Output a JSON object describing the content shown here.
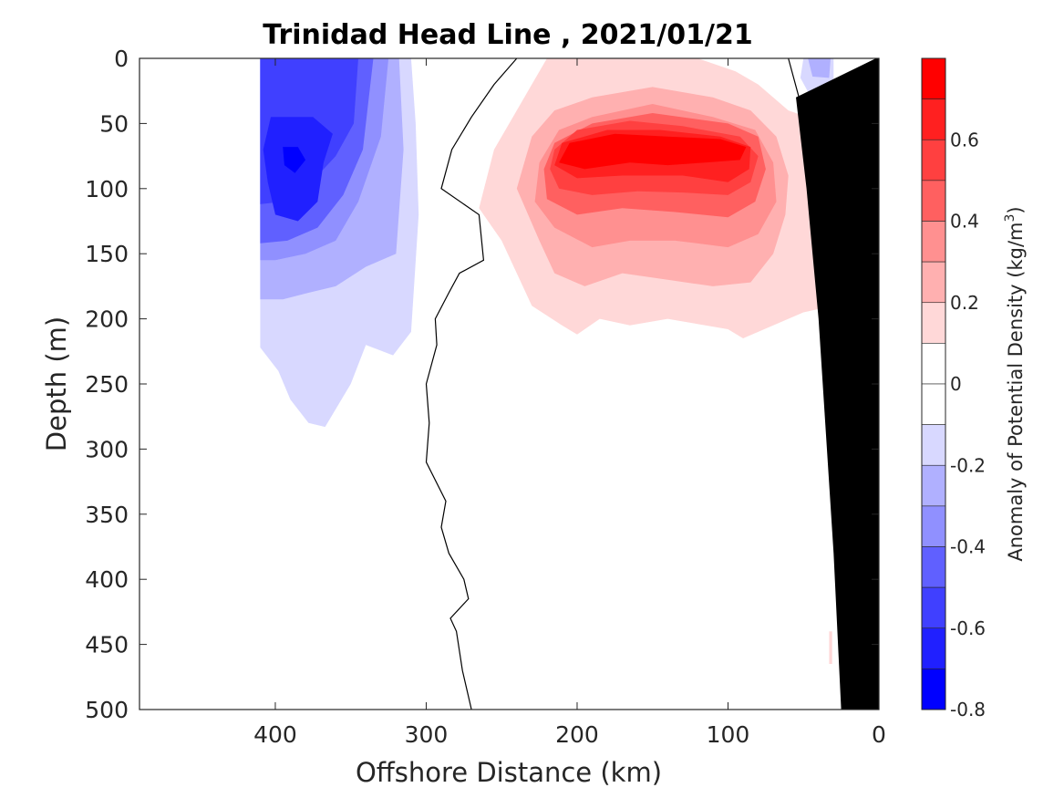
{
  "chart_data": {
    "type": "contour",
    "title": "Trinidad Head Line , 2021/01/21",
    "xlabel": "Offshore Distance (km)",
    "ylabel": "Depth (m)",
    "xlim": [
      490,
      0
    ],
    "ylim": [
      0,
      500
    ],
    "x_reversed": true,
    "y_reversed": true,
    "xticks": [
      400,
      300,
      200,
      100,
      0
    ],
    "yticks": [
      0,
      50,
      100,
      150,
      200,
      250,
      300,
      350,
      400,
      450,
      500
    ],
    "colorbar": {
      "label": "Anomaly of Potential Density",
      "unit_base": "(kg/m",
      "unit_exp": "3",
      "unit_close": ")",
      "range": [
        -0.8,
        0.8
      ],
      "ticks": [
        0.6,
        0.4,
        0.2,
        0,
        -0.2,
        -0.4,
        -0.6,
        -0.8
      ],
      "levels": [
        {
          "from": 0.7,
          "to": 0.8,
          "color": "#ff0000"
        },
        {
          "from": 0.6,
          "to": 0.7,
          "color": "#ff2020"
        },
        {
          "from": 0.5,
          "to": 0.6,
          "color": "#ff4040"
        },
        {
          "from": 0.4,
          "to": 0.5,
          "color": "#ff6060"
        },
        {
          "from": 0.3,
          "to": 0.4,
          "color": "#ff9090"
        },
        {
          "from": 0.2,
          "to": 0.3,
          "color": "#ffb0b0"
        },
        {
          "from": 0.1,
          "to": 0.2,
          "color": "#ffd8d8"
        },
        {
          "from": 0.0,
          "to": 0.1,
          "color": "#ffffff"
        },
        {
          "from": -0.1,
          "to": 0.0,
          "color": "#ffffff"
        },
        {
          "from": -0.2,
          "to": -0.1,
          "color": "#d8d8ff"
        },
        {
          "from": -0.3,
          "to": -0.2,
          "color": "#b0b0ff"
        },
        {
          "from": -0.4,
          "to": -0.3,
          "color": "#9090ff"
        },
        {
          "from": -0.5,
          "to": -0.4,
          "color": "#6060ff"
        },
        {
          "from": -0.6,
          "to": -0.5,
          "color": "#4040ff"
        },
        {
          "from": -0.7,
          "to": -0.6,
          "color": "#2020ff"
        },
        {
          "from": -0.8,
          "to": -0.7,
          "color": "#0000ff"
        }
      ]
    },
    "regions": [
      {
        "name": "neg-0.1",
        "color": "#d8d8ff",
        "points": [
          [
            410,
            0
          ],
          [
            310,
            0
          ],
          [
            307,
            50
          ],
          [
            305,
            120
          ],
          [
            310,
            210
          ],
          [
            322,
            228
          ],
          [
            340,
            220
          ],
          [
            350,
            250
          ],
          [
            367,
            283
          ],
          [
            378,
            280
          ],
          [
            390,
            262
          ],
          [
            398,
            240
          ],
          [
            410,
            222
          ]
        ]
      },
      {
        "name": "neg-0.2",
        "color": "#b0b0ff",
        "points": [
          [
            410,
            0
          ],
          [
            318,
            0
          ],
          [
            315,
            70
          ],
          [
            320,
            150
          ],
          [
            340,
            160
          ],
          [
            360,
            175
          ],
          [
            378,
            180
          ],
          [
            395,
            185
          ],
          [
            410,
            185
          ]
        ]
      },
      {
        "name": "neg-0.3",
        "color": "#9090ff",
        "points": [
          [
            410,
            0
          ],
          [
            325,
            0
          ],
          [
            330,
            60
          ],
          [
            345,
            110
          ],
          [
            360,
            140
          ],
          [
            380,
            150
          ],
          [
            400,
            155
          ],
          [
            410,
            155
          ]
        ]
      },
      {
        "name": "neg-0.4",
        "color": "#6060ff",
        "points": [
          [
            410,
            0
          ],
          [
            335,
            0
          ],
          [
            342,
            70
          ],
          [
            355,
            105
          ],
          [
            372,
            130
          ],
          [
            392,
            140
          ],
          [
            410,
            142
          ]
        ]
      },
      {
        "name": "neg-0.5",
        "color": "#4040ff",
        "points": [
          [
            410,
            0
          ],
          [
            345,
            0
          ],
          [
            348,
            50
          ],
          [
            360,
            75
          ],
          [
            380,
            100
          ],
          [
            395,
            110
          ],
          [
            410,
            112
          ]
        ]
      },
      {
        "name": "neg-0.6",
        "color": "#2020ff",
        "points": [
          [
            403,
            45
          ],
          [
            375,
            45
          ],
          [
            362,
            58
          ],
          [
            368,
            80
          ],
          [
            372,
            110
          ],
          [
            385,
            125
          ],
          [
            400,
            120
          ],
          [
            405,
            95
          ],
          [
            408,
            70
          ]
        ]
      },
      {
        "name": "neg-0.7",
        "color": "#0000ff",
        "points": [
          [
            395,
            68
          ],
          [
            385,
            68
          ],
          [
            380,
            78
          ],
          [
            387,
            88
          ],
          [
            394,
            82
          ]
        ]
      },
      {
        "name": "neg-0.1-b",
        "color": "#d8d8ff",
        "points": [
          [
            50,
            0
          ],
          [
            30,
            0
          ],
          [
            30,
            30
          ],
          [
            45,
            30
          ],
          [
            52,
            15
          ]
        ]
      },
      {
        "name": "neg-0.2-b",
        "color": "#b0b0ff",
        "points": [
          [
            47,
            0
          ],
          [
            32,
            0
          ],
          [
            33,
            15
          ],
          [
            44,
            14
          ]
        ]
      },
      {
        "name": "pos-0.1",
        "color": "#ffd8d8",
        "points": [
          [
            235,
            30
          ],
          [
            255,
            70
          ],
          [
            265,
            115
          ],
          [
            250,
            140
          ],
          [
            240,
            165
          ],
          [
            230,
            190
          ],
          [
            210,
            205
          ],
          [
            200,
            212
          ],
          [
            185,
            200
          ],
          [
            165,
            205
          ],
          [
            140,
            200
          ],
          [
            100,
            208
          ],
          [
            90,
            215
          ],
          [
            70,
            205
          ],
          [
            50,
            195
          ],
          [
            30,
            190
          ],
          [
            20,
            180
          ],
          [
            22,
            62
          ],
          [
            30,
            52
          ],
          [
            60,
            40
          ],
          [
            80,
            20
          ],
          [
            95,
            10
          ],
          [
            120,
            0
          ],
          [
            220,
            0
          ]
        ]
      },
      {
        "name": "pos-0.2",
        "color": "#ffb0b0",
        "points": [
          [
            230,
            60
          ],
          [
            240,
            100
          ],
          [
            225,
            140
          ],
          [
            215,
            165
          ],
          [
            195,
            175
          ],
          [
            170,
            165
          ],
          [
            140,
            170
          ],
          [
            110,
            175
          ],
          [
            85,
            172
          ],
          [
            70,
            150
          ],
          [
            62,
            120
          ],
          [
            60,
            90
          ],
          [
            68,
            60
          ],
          [
            85,
            40
          ],
          [
            110,
            30
          ],
          [
            150,
            22
          ],
          [
            190,
            30
          ],
          [
            215,
            40
          ]
        ]
      },
      {
        "name": "pos-0.3",
        "color": "#ff9090",
        "points": [
          [
            225,
            80
          ],
          [
            228,
            110
          ],
          [
            215,
            130
          ],
          [
            190,
            145
          ],
          [
            165,
            140
          ],
          [
            135,
            140
          ],
          [
            100,
            145
          ],
          [
            80,
            135
          ],
          [
            68,
            110
          ],
          [
            70,
            80
          ],
          [
            82,
            55
          ],
          [
            110,
            45
          ],
          [
            150,
            35
          ],
          [
            190,
            45
          ],
          [
            212,
            55
          ]
        ]
      },
      {
        "name": "pos-0.4",
        "color": "#ff6060",
        "points": [
          [
            222,
            85
          ],
          [
            220,
            108
          ],
          [
            200,
            120
          ],
          [
            170,
            115
          ],
          [
            135,
            118
          ],
          [
            100,
            122
          ],
          [
            82,
            110
          ],
          [
            75,
            85
          ],
          [
            80,
            60
          ],
          [
            100,
            50
          ],
          [
            150,
            42
          ],
          [
            190,
            50
          ],
          [
            215,
            65
          ]
        ]
      },
      {
        "name": "pos-0.5",
        "color": "#ff4040",
        "points": [
          [
            218,
            85
          ],
          [
            212,
            100
          ],
          [
            190,
            105
          ],
          [
            160,
            102
          ],
          [
            130,
            103
          ],
          [
            100,
            105
          ],
          [
            85,
            95
          ],
          [
            80,
            75
          ],
          [
            92,
            60
          ],
          [
            130,
            52
          ],
          [
            165,
            48
          ],
          [
            200,
            55
          ],
          [
            215,
            70
          ]
        ]
      },
      {
        "name": "pos-0.6",
        "color": "#ff2020",
        "points": [
          [
            215,
            82
          ],
          [
            200,
            92
          ],
          [
            170,
            90
          ],
          [
            130,
            90
          ],
          [
            100,
            95
          ],
          [
            86,
            85
          ],
          [
            85,
            68
          ],
          [
            105,
            60
          ],
          [
            145,
            55
          ],
          [
            180,
            55
          ],
          [
            210,
            65
          ]
        ]
      },
      {
        "name": "pos-0.7",
        "color": "#ff0000",
        "points": [
          [
            212,
            80
          ],
          [
            195,
            85
          ],
          [
            165,
            80
          ],
          [
            140,
            82
          ],
          [
            115,
            80
          ],
          [
            92,
            78
          ],
          [
            88,
            68
          ],
          [
            105,
            62
          ],
          [
            140,
            60
          ],
          [
            175,
            58
          ],
          [
            205,
            65
          ]
        ]
      }
    ],
    "zero_contour": [
      [
        270,
        500
      ],
      [
        276,
        470
      ],
      [
        280,
        440
      ],
      [
        284,
        430
      ],
      [
        272,
        415
      ],
      [
        275,
        400
      ],
      [
        285,
        380
      ],
      [
        290,
        360
      ],
      [
        287,
        340
      ],
      [
        300,
        310
      ],
      [
        298,
        280
      ],
      [
        300,
        250
      ],
      [
        293,
        220
      ],
      [
        294,
        200
      ],
      [
        285,
        180
      ],
      [
        278,
        165
      ],
      [
        262,
        155
      ],
      [
        265,
        120
      ],
      [
        290,
        100
      ],
      [
        283,
        70
      ],
      [
        270,
        45
      ],
      [
        255,
        20
      ],
      [
        240,
        0
      ]
    ],
    "zero_contour_2": [
      [
        60,
        0
      ],
      [
        53,
        30
      ],
      [
        38,
        45
      ],
      [
        20,
        53
      ]
    ],
    "bathymetry": [
      [
        0,
        0
      ],
      [
        0,
        500
      ],
      [
        25,
        500
      ],
      [
        30,
        380
      ],
      [
        40,
        200
      ],
      [
        48,
        100
      ],
      [
        55,
        30
      ],
      [
        2,
        0
      ]
    ],
    "small_patch": {
      "color": "#ffd8d8",
      "points": [
        [
          33,
          465
        ],
        [
          31,
          465
        ],
        [
          31,
          440
        ],
        [
          33,
          440
        ]
      ]
    }
  }
}
